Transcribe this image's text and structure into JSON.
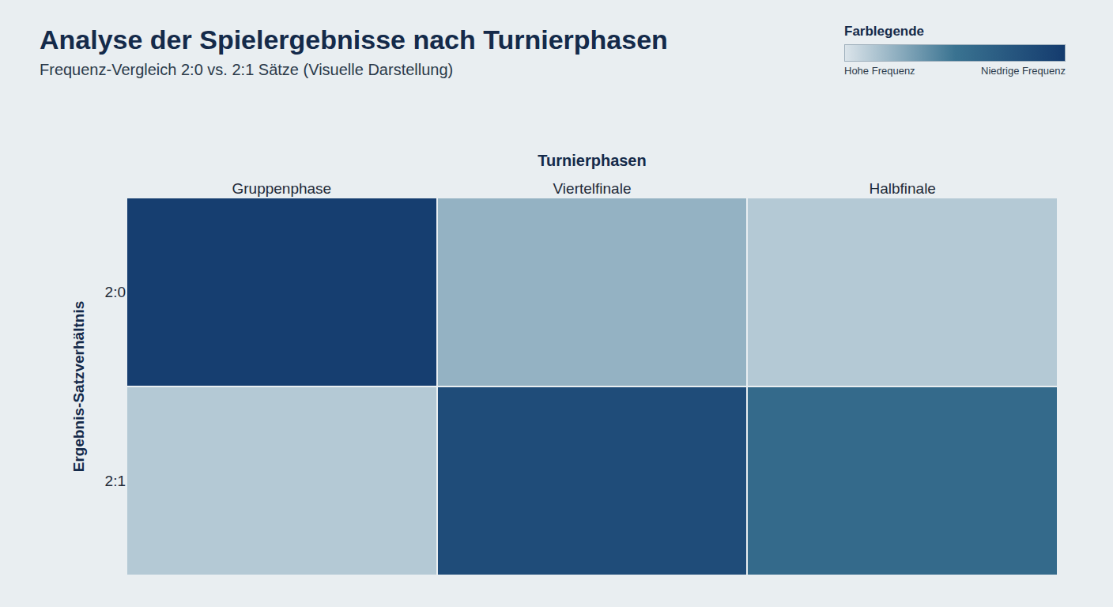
{
  "chart_data": {
    "type": "heatmap",
    "title": "Analyse der Spielergebnisse nach Turnierphasen",
    "subtitle": "Frequenz-Vergleich 2:0 vs. 2:1 Sätze (Visuelle Darstellung)",
    "x_label": "Turnierphasen",
    "y_label": "Ergebnis-Satzverhältnis",
    "categories": [
      "Gruppenphase",
      "Viertelfinale",
      "Halbfinale"
    ],
    "rows": [
      "2:0",
      "2:1"
    ],
    "cells": [
      [
        3,
        78,
        88
      ],
      [
        88,
        15,
        42
      ]
    ],
    "color_title": "Farblegende",
    "color_range": [
      0,
      100
    ],
    "color_ticks": [
      {
        "value": 100,
        "label": "Hohe Frequenz"
      },
      {
        "value": 0,
        "label": "Niedrige Frequenz"
      }
    ]
  }
}
